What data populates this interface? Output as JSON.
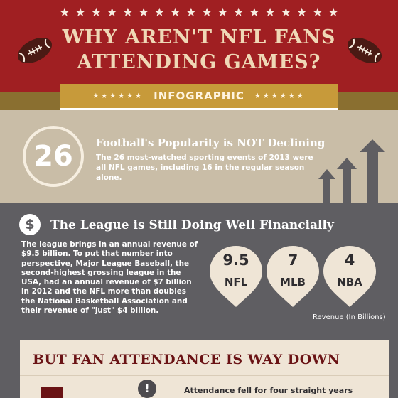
{
  "header": {
    "title_line1": "WHY AREN'T NFL FANS",
    "title_line2": "ATTENDING GAMES?",
    "ribbon_label": "INFOGRAPHIC",
    "ribbon_stars_left": "★★★★★★",
    "ribbon_stars_right": "★★★★★★",
    "star_count": 18
  },
  "section_popularity": {
    "number": "26",
    "heading": "Football's Popularity is NOT Declining",
    "body": "The 26 most-watched sporting events of 2013 were all NFL games, including 16 in the regular season alone."
  },
  "section_financial": {
    "icon_symbol": "$",
    "heading": "The League is Still Doing Well Financially",
    "body": "The league brings in an annual revenue of $9.5 billion. To put that number into perspective, Major League Baseball, the second-highest grossing league in the USA, had an annual revenue of $7 billion in 2012 and the NFL more than doubles the National Basketball Association and their revenue of \"just\" $4 billion.",
    "revenue": [
      {
        "value": "9.5",
        "league": "NFL"
      },
      {
        "value": "7",
        "league": "MLB"
      },
      {
        "value": "4",
        "league": "NBA"
      }
    ],
    "revenue_note": "Revenue (In Billions)"
  },
  "section_attendance": {
    "heading": "BUT FAN ATTENDANCE IS WAY DOWN",
    "alert_symbol": "!",
    "text": "Attendance fell for four straight years"
  },
  "colors": {
    "header_red": "#a01f22",
    "gold": "#c79a3a",
    "tan": "#c9bda7",
    "slate": "#5f5e62",
    "cream": "#efe5d6",
    "maroon": "#6a1315"
  }
}
